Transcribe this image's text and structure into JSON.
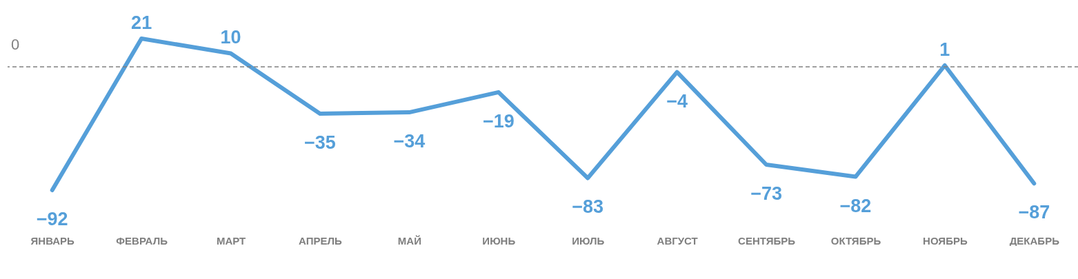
{
  "chart_data": {
    "type": "line",
    "categories": [
      "ЯНВАРЬ",
      "ФЕВРАЛЬ",
      "МАРТ",
      "АПРЕЛЬ",
      "МАЙ",
      "ИЮНЬ",
      "ИЮЛЬ",
      "АВГУСТ",
      "СЕНТЯБРЬ",
      "ОКТЯБРЬ",
      "НОЯБРЬ",
      "ДЕКАБРЬ"
    ],
    "series": [
      {
        "color": "#559fd9",
        "values": [
          -92,
          21,
          10,
          -35,
          -34,
          -19,
          -83,
          -4,
          -73,
          -82,
          1,
          -87
        ]
      }
    ],
    "data_labels": true,
    "ref_lines": [
      {
        "axis": "y",
        "value": 0,
        "label": "0",
        "color": "#808080",
        "line_style": "dashed"
      }
    ]
  }
}
